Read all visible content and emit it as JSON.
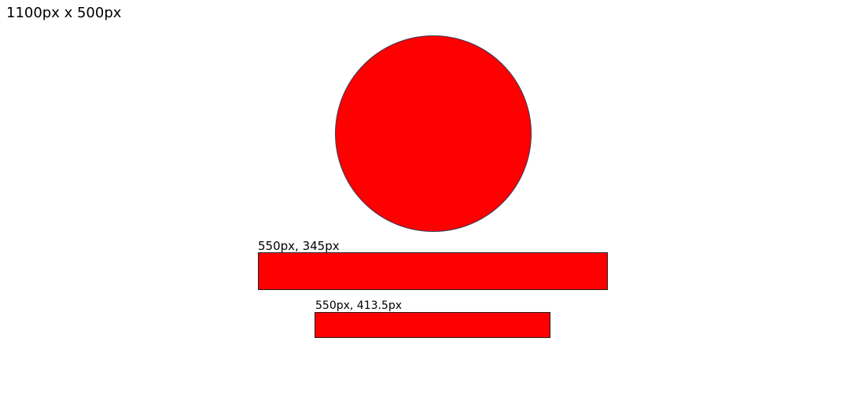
{
  "canvas_label": "1100px x 500px",
  "shapes": {
    "circle": {
      "color": "#ff0000"
    },
    "bar_1": {
      "label": "550px, 345px",
      "color": "#ff0000"
    },
    "bar_2": {
      "label": "550px, 413.5px",
      "color": "#ff0000"
    }
  }
}
